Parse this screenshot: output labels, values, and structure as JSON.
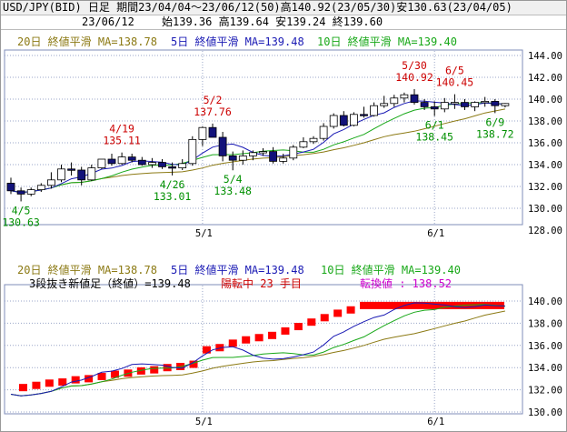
{
  "header": {
    "title": "USD/JPY(BID) 日足 期間23/04/04～23/06/12(50)高140.92(23/05/30)安130.63(23/04/05)",
    "date": "23/06/12",
    "ohlc": "始139.36 高139.64 安139.24 終139.60"
  },
  "colors": {
    "ma20": "#8c7a14",
    "ma5": "#1a1ab4",
    "ma10": "#18a818",
    "up": "#ffffff",
    "down": "#12127a",
    "renko": "#ff0000",
    "grid": "#9aa6c8",
    "label_red": "#cc0000",
    "label_green": "#009000",
    "label_magenta": "#cc00cc"
  },
  "top_panel": {
    "legend": {
      "ma20": "20日 終値平滑 MA=138.78",
      "ma5": "5日 終値平滑 MA=139.48",
      "ma10": "10日 終値平滑 MA=139.40"
    },
    "y_ticks": [
      "144.00",
      "142.00",
      "140.00",
      "138.00",
      "136.00",
      "134.00",
      "132.00",
      "130.00",
      "128.00"
    ],
    "x_ticks": [
      "5/1",
      "6/1"
    ],
    "annotations": [
      {
        "date": "4/5",
        "value": "130.63",
        "kind": "low"
      },
      {
        "date": "4/19",
        "value": "135.11",
        "kind": "high"
      },
      {
        "date": "4/26",
        "value": "133.01",
        "kind": "low"
      },
      {
        "date": "5/2",
        "value": "137.76",
        "kind": "high"
      },
      {
        "date": "5/4",
        "value": "133.48",
        "kind": "low"
      },
      {
        "date": "5/30",
        "value": "140.92",
        "kind": "high"
      },
      {
        "date": "6/1",
        "value": "138.45",
        "kind": "low"
      },
      {
        "date": "6/5",
        "value": "140.45",
        "kind": "high"
      },
      {
        "date": "6/9",
        "value": "138.72",
        "kind": "low"
      }
    ]
  },
  "bottom_panel": {
    "legend": {
      "ma20": "20日 終値平滑 MA=138.78",
      "ma5": "5日 終値平滑 MA=139.48",
      "ma10": "10日 終値平滑 MA=139.40"
    },
    "renko_label": "3段抜き新値足（終値）=139.48",
    "status": "陽転中  23 手目",
    "reversal": "転換値 : 138.52",
    "y_ticks": [
      "140.00",
      "138.00",
      "136.00",
      "134.00",
      "132.00",
      "130.00"
    ],
    "x_ticks": [
      "5/1",
      "6/1"
    ]
  },
  "chart_data": [
    {
      "type": "candlestick",
      "title": "USD/JPY(BID) 日足",
      "ylim": [
        128,
        145
      ],
      "dates": [
        "4/4",
        "4/5",
        "4/6",
        "4/7",
        "4/10",
        "4/11",
        "4/12",
        "4/13",
        "4/14",
        "4/17",
        "4/18",
        "4/19",
        "4/20",
        "4/21",
        "4/24",
        "4/25",
        "4/26",
        "4/27",
        "4/28",
        "5/1",
        "5/2",
        "5/3",
        "5/4",
        "5/5",
        "5/8",
        "5/9",
        "5/10",
        "5/11",
        "5/12",
        "5/15",
        "5/16",
        "5/17",
        "5/18",
        "5/19",
        "5/22",
        "5/23",
        "5/24",
        "5/25",
        "5/26",
        "5/29",
        "5/30",
        "5/31",
        "6/1",
        "6/2",
        "6/5",
        "6/6",
        "6/7",
        "6/8",
        "6/9",
        "6/12"
      ],
      "open": [
        132.3,
        131.6,
        131.3,
        131.7,
        132.1,
        132.6,
        133.6,
        133.5,
        132.6,
        133.7,
        134.5,
        134.1,
        134.7,
        134.4,
        134.0,
        134.2,
        133.8,
        133.7,
        134.1,
        136.3,
        137.4,
        136.5,
        134.8,
        134.4,
        134.8,
        135.1,
        135.2,
        134.3,
        134.6,
        135.6,
        136.1,
        136.4,
        137.5,
        138.5,
        137.6,
        138.6,
        138.5,
        139.4,
        139.6,
        140.1,
        140.4,
        139.7,
        139.3,
        139.1,
        139.7,
        139.7,
        139.3,
        139.7,
        139.8,
        139.4
      ],
      "high": [
        132.8,
        131.9,
        131.9,
        132.3,
        133.3,
        134.0,
        134.2,
        133.8,
        134.0,
        134.5,
        135.0,
        135.11,
        135.0,
        134.7,
        134.6,
        134.5,
        134.2,
        134.5,
        136.6,
        137.5,
        137.76,
        137.0,
        135.2,
        135.3,
        135.3,
        135.5,
        135.6,
        135.0,
        135.8,
        136.5,
        136.6,
        137.8,
        138.7,
        138.9,
        138.8,
        139.3,
        139.7,
        140.3,
        140.4,
        140.6,
        140.92,
        140.0,
        139.8,
        140.1,
        140.45,
        140.0,
        139.8,
        140.2,
        140.0,
        139.64
      ],
      "low": [
        131.3,
        130.63,
        131.1,
        131.5,
        131.8,
        132.4,
        133.0,
        132.1,
        132.5,
        133.6,
        133.9,
        134.0,
        134.2,
        133.9,
        133.7,
        133.6,
        133.01,
        133.5,
        133.9,
        135.7,
        136.6,
        134.3,
        133.48,
        134.0,
        134.4,
        134.8,
        134.1,
        134.1,
        134.4,
        135.5,
        135.9,
        136.2,
        137.3,
        137.5,
        137.5,
        138.3,
        138.4,
        139.2,
        139.3,
        139.7,
        139.5,
        139.0,
        138.45,
        138.8,
        139.1,
        139.0,
        138.9,
        139.3,
        138.72,
        139.24
      ],
      "close": [
        131.6,
        131.3,
        131.7,
        132.1,
        132.6,
        133.6,
        133.5,
        132.6,
        133.7,
        134.5,
        134.1,
        134.7,
        134.4,
        134.0,
        134.2,
        133.8,
        133.7,
        134.1,
        136.3,
        137.4,
        136.5,
        134.8,
        134.4,
        134.8,
        135.1,
        135.2,
        134.3,
        134.6,
        135.6,
        136.1,
        136.4,
        137.5,
        138.5,
        137.6,
        138.6,
        138.5,
        139.4,
        139.6,
        140.1,
        140.4,
        139.7,
        139.3,
        139.1,
        139.7,
        139.7,
        139.3,
        139.7,
        139.8,
        139.4,
        139.6
      ],
      "series": [
        {
          "name": "5日 終値平滑",
          "last": 139.48
        },
        {
          "name": "10日 終値平滑",
          "last": 139.4
        },
        {
          "name": "20日 終値平滑",
          "last": 138.78
        }
      ]
    },
    {
      "type": "renko",
      "title": "3段抜き新値足（終値）",
      "ylim": [
        130,
        141
      ],
      "bricks": [
        132.2,
        132.4,
        132.6,
        132.7,
        132.9,
        133.0,
        133.2,
        133.4,
        133.5,
        133.7,
        133.8,
        134.0,
        134.1,
        134.3,
        135.6,
        135.8,
        136.2,
        136.5,
        136.7,
        136.9,
        137.3,
        137.7,
        138.1,
        138.5,
        138.9,
        139.2,
        139.6
      ],
      "last_value": 139.48,
      "reversal_value": 138.52
    }
  ]
}
